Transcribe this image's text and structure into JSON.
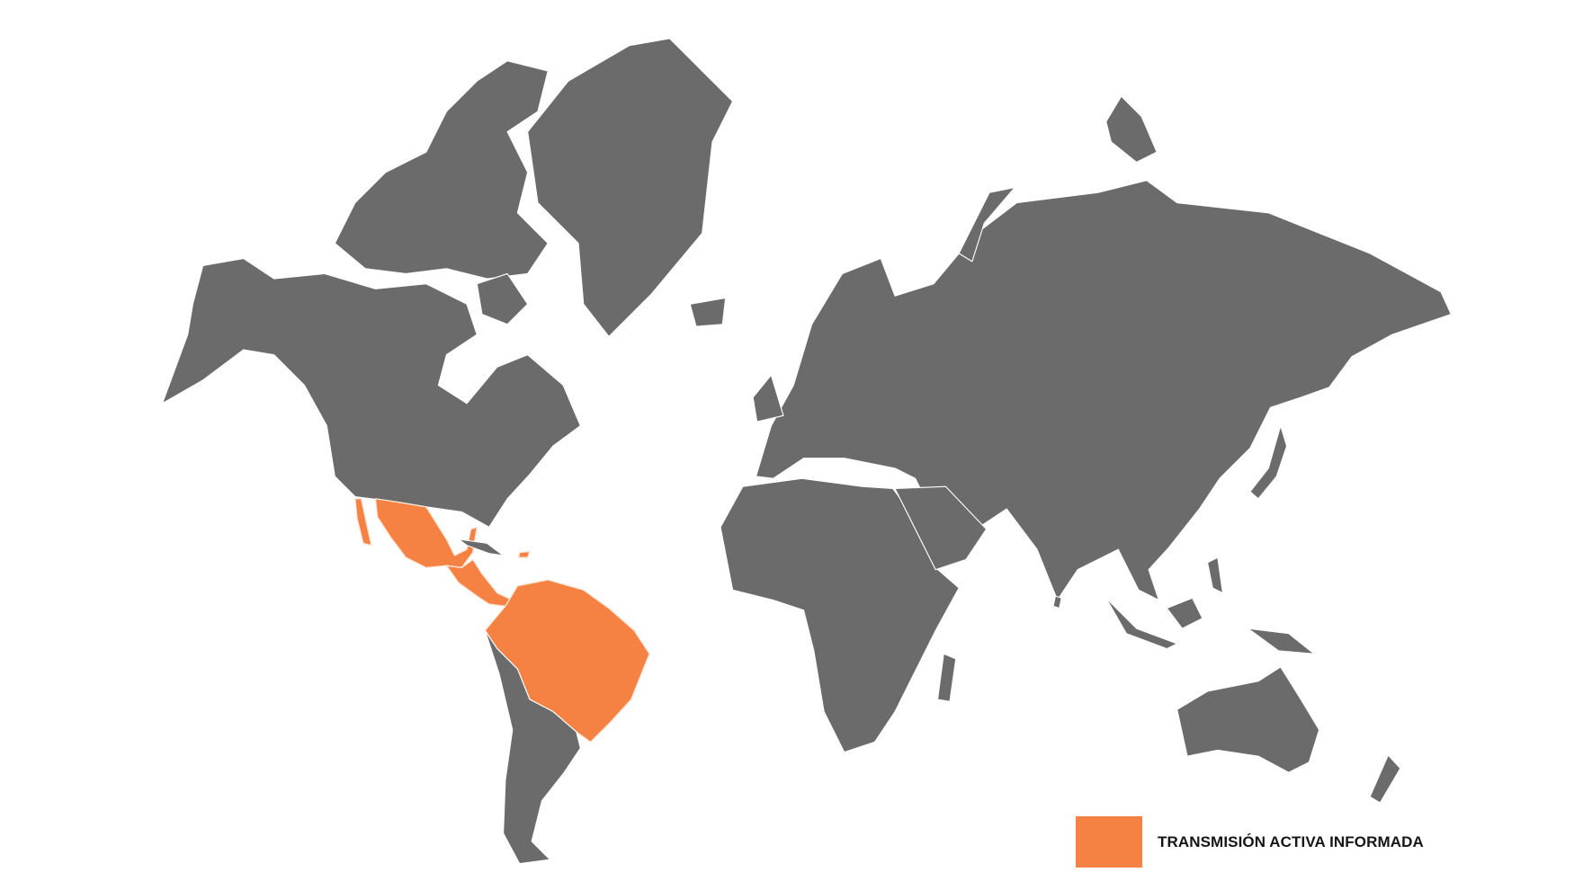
{
  "map": {
    "land_color": "#6b6b6b",
    "highlight_color": "#f58142",
    "highlighted_regions": [
      "Mexico",
      "Belize",
      "Guatemala",
      "Honduras",
      "El Salvador",
      "Nicaragua",
      "Costa Rica",
      "Panama",
      "Puerto Rico",
      "Colombia",
      "Venezuela",
      "Guyana",
      "Suriname",
      "French Guiana",
      "Ecuador",
      "Brazil",
      "Bolivia",
      "Paraguay"
    ]
  },
  "legend": {
    "items": [
      {
        "label": "TRANSMISIÓN ACTIVA INFORMADA",
        "color": "#f58142"
      }
    ]
  }
}
